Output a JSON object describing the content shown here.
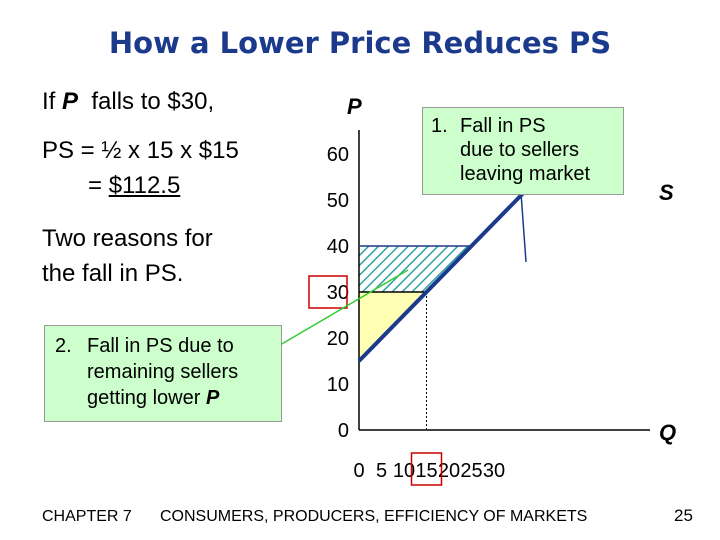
{
  "slide": {
    "title": "How a Lower Price Reduces PS",
    "line1_pre": "If ",
    "line1_P": "P",
    "line1_post": "  falls to $30,",
    "ps_line1": "PS = ½ x 15 x $15",
    "ps_line2_pre": "= ",
    "ps_line2_value": "$112.5",
    "reasons_line1": "Two reasons for",
    "reasons_line2": "the fall in PS.",
    "callout1": {
      "num": "1.",
      "line1": "Fall in PS",
      "line2": "due to sellers",
      "line3": "leaving market"
    },
    "callout2": {
      "num": "2.",
      "line1": "Fall in PS due to",
      "line2": "remaining sellers",
      "line3_pre": "getting lower ",
      "line3_P": "P"
    },
    "footer_chapter": "CHAPTER 7",
    "footer_title": "CONSUMERS, PRODUCERS, EFFICIENCY OF MARKETS",
    "page_number": "25"
  },
  "colors": {
    "title": "#1b3a8c",
    "supply_line": "#1b3a8c",
    "hatch": "#2fa3a3",
    "yellow_area": "#ffffb3",
    "callout_bg": "#ccffcc",
    "highlight_box": "#cc0000",
    "pointer_line": "#33cc33"
  },
  "chart_data": {
    "type": "line",
    "xlabel": "Q",
    "ylabel": "P",
    "xlim": [
      0,
      30
    ],
    "ylim": [
      0,
      60
    ],
    "xticks": [
      0,
      5,
      10,
      15,
      20,
      25,
      30
    ],
    "yticks": [
      0,
      10,
      20,
      30,
      40,
      50,
      60
    ],
    "series": [
      {
        "name": "S",
        "x": [
          0,
          40
        ],
        "y": [
          15,
          55
        ]
      }
    ],
    "price_old": 40,
    "price_new": 30,
    "quantity_new": 15,
    "highlighted_ticks": {
      "x": 15,
      "y": 30
    }
  }
}
